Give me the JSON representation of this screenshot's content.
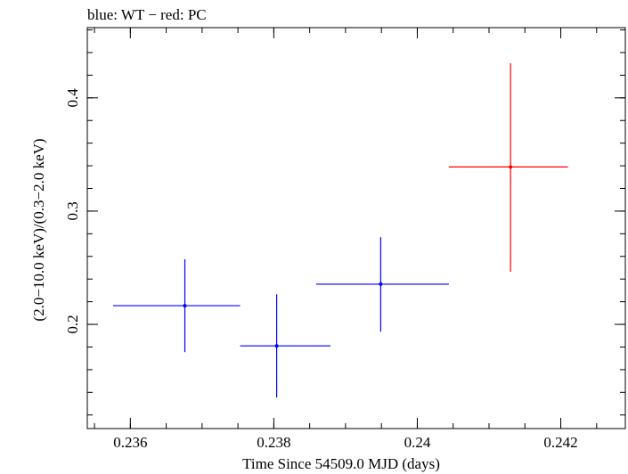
{
  "chart_data": {
    "type": "scatter",
    "title": "blue: WT − red: PC",
    "xlabel": "Time Since 54509.0 MJD (days)",
    "ylabel": "(2.0−10.0 keV)/(0.3−2.0 keV)",
    "xlim": [
      0.2354,
      0.2429
    ],
    "ylim": [
      0.108,
      0.462
    ],
    "x_ticks": [
      {
        "value": 0.236,
        "label": "0.236"
      },
      {
        "value": 0.238,
        "label": "0.238"
      },
      {
        "value": 0.24,
        "label": "0.24"
      },
      {
        "value": 0.242,
        "label": "0.242"
      }
    ],
    "y_ticks": [
      {
        "value": 0.2,
        "label": "0.2"
      },
      {
        "value": 0.3,
        "label": "0.3"
      },
      {
        "value": 0.4,
        "label": "0.4"
      }
    ],
    "grid": false,
    "series": [
      {
        "name": "WT",
        "color": "#0000ff",
        "points": [
          {
            "x": 0.23676,
            "x_lo": 0.23576,
            "x_hi": 0.23753,
            "y": 0.2165,
            "y_lo": 0.1755,
            "y_hi": 0.2575
          },
          {
            "x": 0.23804,
            "x_lo": 0.23753,
            "x_hi": 0.23879,
            "y": 0.181,
            "y_lo": 0.1355,
            "y_hi": 0.2265
          },
          {
            "x": 0.23949,
            "x_lo": 0.23859,
            "x_hi": 0.24044,
            "y": 0.2355,
            "y_lo": 0.1935,
            "y_hi": 0.277
          }
        ]
      },
      {
        "name": "PC",
        "color": "#ff0000",
        "points": [
          {
            "x": 0.2413,
            "x_lo": 0.24044,
            "x_hi": 0.2421,
            "y": 0.339,
            "y_lo": 0.2465,
            "y_hi": 0.4305
          }
        ]
      }
    ]
  }
}
